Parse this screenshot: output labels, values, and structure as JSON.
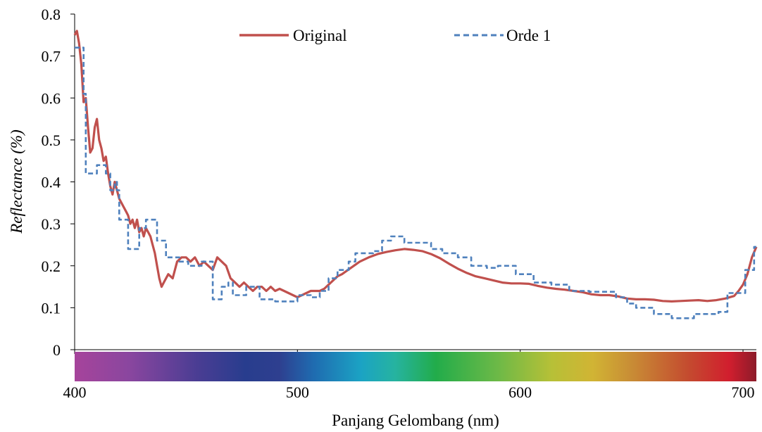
{
  "chart_data": {
    "type": "line",
    "title": "",
    "xlabel": "Panjang Gelombang (nm)",
    "ylabel": "Reflectance (%)",
    "xlim": [
      400,
      706
    ],
    "ylim": [
      0,
      0.8
    ],
    "x_ticks": [
      400,
      500,
      600,
      700
    ],
    "x_tick_labels": [
      "400",
      "500",
      "600",
      "700"
    ],
    "y_ticks": [
      0,
      0.1,
      0.2,
      0.3,
      0.4,
      0.5,
      0.6,
      0.7,
      0.8
    ],
    "y_tick_labels": [
      "0",
      "0.1",
      "0.2",
      "0.3",
      "0.4",
      "0.5",
      "0.6",
      "0.7",
      "0.8"
    ],
    "grid": false,
    "legend_position": "top",
    "spectrum_bar": true,
    "series": [
      {
        "name": "Original",
        "color": "#c0504d",
        "style": "solid",
        "points": [
          [
            400,
            0.75
          ],
          [
            401,
            0.76
          ],
          [
            402,
            0.73
          ],
          [
            403,
            0.68
          ],
          [
            404,
            0.59
          ],
          [
            405,
            0.6
          ],
          [
            406,
            0.53
          ],
          [
            407,
            0.47
          ],
          [
            408,
            0.48
          ],
          [
            409,
            0.53
          ],
          [
            410,
            0.55
          ],
          [
            411,
            0.5
          ],
          [
            412,
            0.48
          ],
          [
            413,
            0.45
          ],
          [
            414,
            0.46
          ],
          [
            415,
            0.42
          ],
          [
            416,
            0.39
          ],
          [
            417,
            0.37
          ],
          [
            418,
            0.4
          ],
          [
            419,
            0.38
          ],
          [
            420,
            0.36
          ],
          [
            421,
            0.35
          ],
          [
            422,
            0.34
          ],
          [
            423,
            0.33
          ],
          [
            424,
            0.32
          ],
          [
            425,
            0.3
          ],
          [
            426,
            0.31
          ],
          [
            427,
            0.29
          ],
          [
            428,
            0.31
          ],
          [
            429,
            0.28
          ],
          [
            430,
            0.29
          ],
          [
            431,
            0.27
          ],
          [
            432,
            0.29
          ],
          [
            433,
            0.28
          ],
          [
            434,
            0.27
          ],
          [
            435,
            0.25
          ],
          [
            436,
            0.23
          ],
          [
            437,
            0.2
          ],
          [
            438,
            0.17
          ],
          [
            439,
            0.15
          ],
          [
            440,
            0.16
          ],
          [
            442,
            0.18
          ],
          [
            444,
            0.17
          ],
          [
            446,
            0.21
          ],
          [
            448,
            0.22
          ],
          [
            450,
            0.22
          ],
          [
            452,
            0.21
          ],
          [
            454,
            0.22
          ],
          [
            456,
            0.2
          ],
          [
            458,
            0.21
          ],
          [
            460,
            0.2
          ],
          [
            462,
            0.19
          ],
          [
            464,
            0.22
          ],
          [
            466,
            0.21
          ],
          [
            468,
            0.2
          ],
          [
            470,
            0.17
          ],
          [
            472,
            0.16
          ],
          [
            474,
            0.15
          ],
          [
            476,
            0.16
          ],
          [
            478,
            0.15
          ],
          [
            480,
            0.14
          ],
          [
            482,
            0.15
          ],
          [
            484,
            0.15
          ],
          [
            486,
            0.14
          ],
          [
            488,
            0.15
          ],
          [
            490,
            0.14
          ],
          [
            492,
            0.145
          ],
          [
            494,
            0.14
          ],
          [
            496,
            0.135
          ],
          [
            498,
            0.13
          ],
          [
            500,
            0.125
          ],
          [
            502,
            0.13
          ],
          [
            504,
            0.135
          ],
          [
            506,
            0.14
          ],
          [
            508,
            0.14
          ],
          [
            510,
            0.14
          ],
          [
            512,
            0.145
          ],
          [
            514,
            0.155
          ],
          [
            516,
            0.165
          ],
          [
            518,
            0.175
          ],
          [
            520,
            0.18
          ],
          [
            524,
            0.195
          ],
          [
            528,
            0.21
          ],
          [
            532,
            0.22
          ],
          [
            536,
            0.228
          ],
          [
            540,
            0.233
          ],
          [
            544,
            0.237
          ],
          [
            548,
            0.24
          ],
          [
            552,
            0.238
          ],
          [
            556,
            0.235
          ],
          [
            560,
            0.228
          ],
          [
            564,
            0.218
          ],
          [
            568,
            0.205
          ],
          [
            572,
            0.193
          ],
          [
            576,
            0.183
          ],
          [
            580,
            0.175
          ],
          [
            584,
            0.17
          ],
          [
            588,
            0.165
          ],
          [
            592,
            0.16
          ],
          [
            596,
            0.158
          ],
          [
            600,
            0.158
          ],
          [
            604,
            0.157
          ],
          [
            608,
            0.152
          ],
          [
            612,
            0.148
          ],
          [
            616,
            0.145
          ],
          [
            620,
            0.143
          ],
          [
            624,
            0.14
          ],
          [
            628,
            0.137
          ],
          [
            632,
            0.132
          ],
          [
            636,
            0.13
          ],
          [
            640,
            0.13
          ],
          [
            644,
            0.127
          ],
          [
            648,
            0.122
          ],
          [
            652,
            0.12
          ],
          [
            656,
            0.12
          ],
          [
            660,
            0.119
          ],
          [
            664,
            0.116
          ],
          [
            668,
            0.115
          ],
          [
            672,
            0.116
          ],
          [
            676,
            0.117
          ],
          [
            680,
            0.118
          ],
          [
            684,
            0.116
          ],
          [
            688,
            0.118
          ],
          [
            692,
            0.122
          ],
          [
            696,
            0.128
          ],
          [
            698,
            0.14
          ],
          [
            700,
            0.155
          ],
          [
            702,
            0.18
          ],
          [
            704,
            0.22
          ],
          [
            706,
            0.245
          ]
        ]
      },
      {
        "name": "Orde 1",
        "color": "#4f81bd",
        "style": "dashed",
        "steps": [
          [
            400,
            0.72
          ],
          [
            404,
            0.61
          ],
          [
            405,
            0.42
          ],
          [
            410,
            0.44
          ],
          [
            414,
            0.42
          ],
          [
            416,
            0.38
          ],
          [
            418,
            0.4
          ],
          [
            419,
            0.38
          ],
          [
            420,
            0.31
          ],
          [
            424,
            0.24
          ],
          [
            429,
            0.29
          ],
          [
            432,
            0.31
          ],
          [
            437,
            0.26
          ],
          [
            441,
            0.22
          ],
          [
            447,
            0.21
          ],
          [
            451,
            0.2
          ],
          [
            457,
            0.21
          ],
          [
            462,
            0.12
          ],
          [
            466,
            0.15
          ],
          [
            469,
            0.16
          ],
          [
            471,
            0.13
          ],
          [
            477,
            0.15
          ],
          [
            483,
            0.12
          ],
          [
            490,
            0.115
          ],
          [
            500,
            0.13
          ],
          [
            506,
            0.125
          ],
          [
            510,
            0.14
          ],
          [
            514,
            0.17
          ],
          [
            518,
            0.19
          ],
          [
            523,
            0.21
          ],
          [
            526,
            0.23
          ],
          [
            534,
            0.235
          ],
          [
            538,
            0.26
          ],
          [
            542,
            0.27
          ],
          [
            548,
            0.255
          ],
          [
            560,
            0.24
          ],
          [
            565,
            0.23
          ],
          [
            572,
            0.22
          ],
          [
            578,
            0.2
          ],
          [
            585,
            0.195
          ],
          [
            590,
            0.2
          ],
          [
            598,
            0.18
          ],
          [
            606,
            0.16
          ],
          [
            614,
            0.155
          ],
          [
            622,
            0.14
          ],
          [
            631,
            0.138
          ],
          [
            643,
            0.125
          ],
          [
            648,
            0.11
          ],
          [
            652,
            0.1
          ],
          [
            660,
            0.085
          ],
          [
            668,
            0.075
          ],
          [
            678,
            0.085
          ],
          [
            689,
            0.09
          ],
          [
            693,
            0.135
          ],
          [
            701,
            0.19
          ],
          [
            705,
            0.245
          ],
          [
            706,
            0.245
          ]
        ]
      }
    ]
  }
}
